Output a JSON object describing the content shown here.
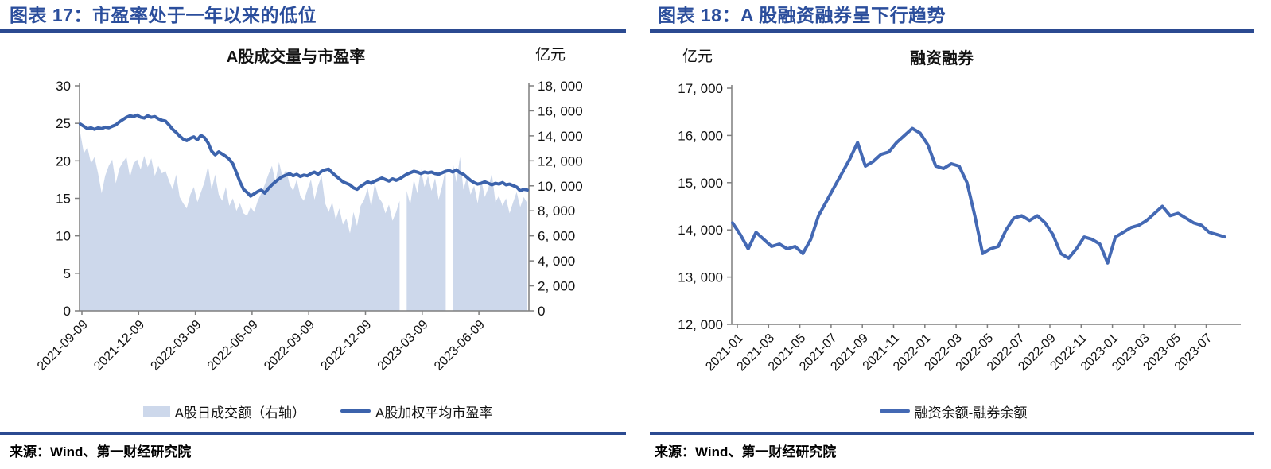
{
  "colors": {
    "header_text": "#2B4E9C",
    "rule_blue": "#2B4A91",
    "axis_grey": "#7F7F7F",
    "area_fill": "#CDD8EB",
    "pe_line": "#3C63AC",
    "margin_line": "#4469B4"
  },
  "panels": [
    {
      "header": "图表 17：市盈率处于一年以来的低位",
      "source": "来源：Wind、第一财经研究院"
    },
    {
      "header": "图表 18：A 股融资融券呈下行趋势",
      "source": "来源：Wind、第一财经研究院"
    }
  ],
  "chart_data": [
    {
      "type": "area+line combo",
      "title": "A股成交量与市盈率",
      "right_axis_unit": "亿元",
      "left_axis": {
        "min": 0,
        "max": 30,
        "step": 5,
        "labels": [
          "30",
          "25",
          "20",
          "15",
          "10",
          "5",
          "0"
        ]
      },
      "right_axis": {
        "min": 0,
        "max": 18000,
        "step": 2000,
        "labels": [
          "18, 000",
          "16, 000",
          "14, 000",
          "12, 000",
          "10, 000",
          "8, 000",
          "6, 000",
          "4, 000",
          "2, 000",
          "0"
        ]
      },
      "x_tick_labels": [
        "2021-09-09",
        "2021-12-09",
        "2022-03-09",
        "2022-06-09",
        "2022-09-09",
        "2022-12-09",
        "2023-03-09",
        "2023-06-09"
      ],
      "x_range_note": "daily data 2021-09-09 to 2023-08-31, nulls are market-holiday gaps",
      "legend_position": "bottom",
      "series": [
        {
          "name": "A股日成交额（右轴）",
          "type": "area",
          "axis": "right",
          "values": [
            14200,
            12600,
            13100,
            11800,
            12300,
            11000,
            9400,
            10800,
            11600,
            12100,
            10200,
            11400,
            11900,
            12300,
            10700,
            11800,
            12100,
            11300,
            12400,
            11500,
            12200,
            10800,
            11600,
            11000,
            11200,
            10400,
            9700,
            10900,
            9100,
            8600,
            8200,
            9300,
            9900,
            8700,
            9500,
            10300,
            11600,
            9700,
            10900,
            9300,
            8800,
            9900,
            8400,
            9000,
            8000,
            8600,
            7800,
            7600,
            8300,
            7900,
            8800,
            9400,
            10100,
            10900,
            11600,
            10300,
            11900,
            10700,
            11300,
            10100,
            9600,
            10500,
            9200,
            8800,
            9700,
            10500,
            8900,
            10000,
            10800,
            8600,
            7900,
            8700,
            7300,
            8200,
            6900,
            7400,
            6200,
            7900,
            6800,
            8400,
            8900,
            9800,
            8300,
            10200,
            9100,
            8700,
            7800,
            8500,
            7200,
            7900,
            8800,
            null,
            9600,
            8500,
            10500,
            9400,
            11300,
            9900,
            10800,
            9600,
            10600,
            8900,
            10000,
            11400,
            null,
            11900,
            10300,
            12300,
            9700,
            10700,
            9300,
            10000,
            8600,
            10500,
            9100,
            9800,
            11000,
            8700,
            9200,
            8400,
            9000,
            7800,
            8700,
            9500,
            8300,
            9100,
            8600
          ]
        },
        {
          "name": "A股加权平均市盈率",
          "type": "line",
          "axis": "left",
          "values": [
            24.9,
            24.6,
            24.3,
            24.4,
            24.2,
            24.4,
            24.3,
            24.5,
            24.4,
            24.6,
            24.8,
            25.2,
            25.5,
            25.8,
            26.0,
            25.9,
            26.1,
            25.8,
            25.7,
            26.0,
            25.8,
            25.9,
            25.6,
            25.4,
            25.3,
            24.8,
            24.2,
            23.8,
            23.3,
            22.9,
            22.7,
            23.0,
            23.2,
            22.8,
            23.4,
            23.1,
            22.4,
            21.3,
            20.8,
            21.2,
            20.9,
            20.6,
            20.2,
            19.6,
            18.4,
            17.2,
            16.2,
            15.8,
            15.3,
            15.6,
            15.9,
            16.1,
            15.7,
            16.3,
            16.8,
            17.2,
            17.6,
            17.9,
            18.1,
            18.3,
            18.0,
            18.2,
            17.9,
            18.1,
            18.0,
            18.3,
            18.5,
            18.2,
            18.6,
            18.8,
            18.9,
            18.4,
            18.0,
            17.6,
            17.2,
            17.0,
            16.8,
            16.4,
            16.2,
            16.6,
            16.9,
            17.2,
            17.0,
            17.3,
            17.5,
            17.7,
            17.5,
            17.3,
            17.6,
            17.4,
            17.6,
            17.9,
            18.2,
            18.4,
            18.6,
            18.5,
            18.3,
            18.5,
            18.4,
            18.5,
            18.3,
            18.2,
            18.4,
            18.6,
            18.7,
            18.5,
            18.8,
            18.4,
            18.2,
            17.8,
            17.4,
            17.1,
            16.9,
            17.0,
            17.2,
            17.0,
            16.8,
            17.0,
            16.9,
            17.1,
            16.8,
            16.9,
            16.7,
            16.5,
            16.0,
            16.2,
            16.1
          ]
        }
      ]
    },
    {
      "type": "line",
      "title": "融资融券",
      "axis_unit": "亿元",
      "y_axis": {
        "min": 12000,
        "max": 17000,
        "step": 1000,
        "labels": [
          "17, 000",
          "16, 000",
          "15, 000",
          "14, 000",
          "13, 000",
          "12, 000"
        ]
      },
      "x_tick_labels": [
        "2021-01",
        "2021-03",
        "2021-05",
        "2021-07",
        "2021-09",
        "2021-11",
        "2022-01",
        "2022-03",
        "2022-05",
        "2022-07",
        "2022-09",
        "2022-11",
        "2023-01",
        "2023-03",
        "2023-05",
        "2023-07"
      ],
      "x_range_note": "semi-monthly samples 2021-01 to 2023-08",
      "legend_position": "bottom",
      "series": [
        {
          "name": "融资余额-融券余额",
          "type": "line",
          "values": [
            14150,
            13900,
            13600,
            13950,
            13800,
            13650,
            13700,
            13600,
            13650,
            13500,
            13800,
            14300,
            14600,
            14900,
            15200,
            15500,
            15850,
            15350,
            15450,
            15600,
            15650,
            15850,
            16000,
            16150,
            16050,
            15800,
            15350,
            15300,
            15400,
            15350,
            15000,
            14300,
            13500,
            13600,
            13650,
            14000,
            14250,
            14300,
            14200,
            14300,
            14150,
            13900,
            13500,
            13400,
            13600,
            13850,
            13800,
            13700,
            13300,
            13850,
            13950,
            14050,
            14100,
            14200,
            14350,
            14500,
            14300,
            14350,
            14250,
            14150,
            14100,
            13950,
            13900,
            13850
          ]
        }
      ]
    }
  ]
}
